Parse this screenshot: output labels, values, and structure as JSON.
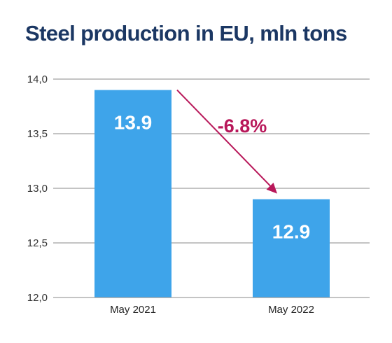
{
  "chart_data": {
    "type": "bar",
    "title": "Steel production in EU, mln tons",
    "categories": [
      "May 2021",
      "May 2022"
    ],
    "values": [
      13.9,
      12.9
    ],
    "data_labels": [
      "13.9",
      "12.9"
    ],
    "y_ticks": [
      "12,0",
      "12,5",
      "13,0",
      "13,5",
      "14,0"
    ],
    "y_tick_values": [
      12.0,
      12.5,
      13.0,
      13.5,
      14.0
    ],
    "ylim": [
      12.0,
      14.0
    ],
    "grid": true,
    "annotation": {
      "text": "-6.8%",
      "from_category": "May 2021",
      "to_category": "May 2022"
    },
    "colors": {
      "bar": "#3ea4ea",
      "title": "#1b3763",
      "annotation": "#b8185a",
      "grid": "#8a8a8a"
    }
  }
}
